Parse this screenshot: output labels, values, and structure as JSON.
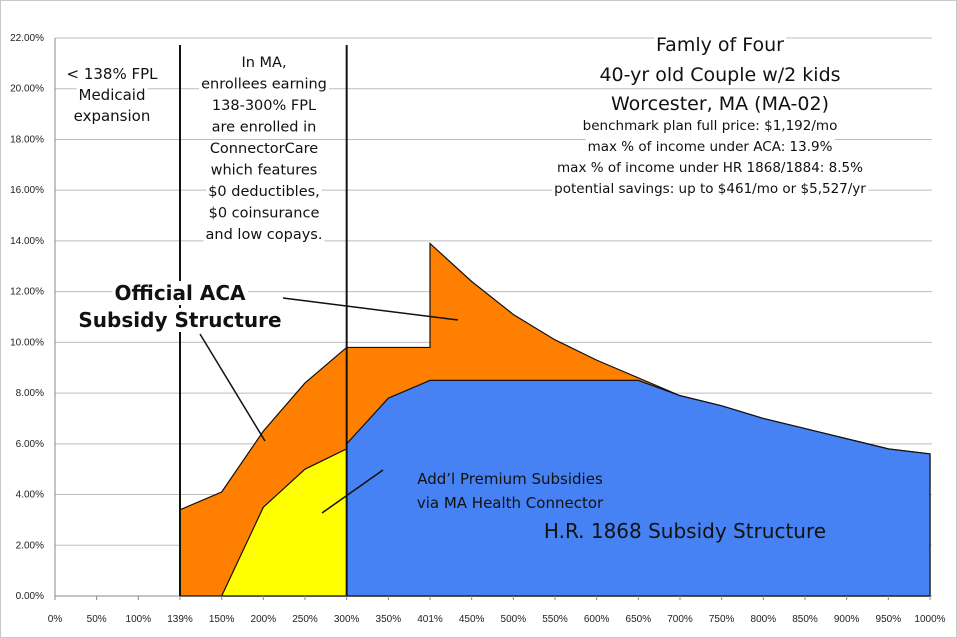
{
  "chart_data": {
    "type": "area",
    "title": "Famly of Four",
    "subtitle_lines": [
      "40-yr old Couple w/2 kids",
      "Worcester, MA (MA-02)"
    ],
    "info_lines": [
      "benchmark plan full price: $1,192/mo",
      "max % of income under ACA: 13.9%",
      "max % of income under HR 1868/1884: 8.5%",
      "potential savings: up to $461/mo or $5,527/yr"
    ],
    "categories": [
      "0%",
      "50%",
      "100%",
      "139%",
      "150%",
      "200%",
      "250%",
      "300%",
      "350%",
      "401%",
      "450%",
      "500%",
      "550%",
      "600%",
      "650%",
      "700%",
      "750%",
      "800%",
      "850%",
      "900%",
      "950%",
      "1000%"
    ],
    "yticks": [
      "0.00%",
      "2.00%",
      "4.00%",
      "6.00%",
      "8.00%",
      "10.00%",
      "12.00%",
      "14.00%",
      "16.00%",
      "18.00%",
      "20.00%",
      "22.00%"
    ],
    "ylim": [
      0,
      22
    ],
    "grid": true,
    "series": [
      {
        "name": "Official ACA Subsidy Structure",
        "color": "#ff7f00",
        "points": [
          [
            "139%",
            3.4
          ],
          [
            "150%",
            4.1
          ],
          [
            "200%",
            6.5
          ],
          [
            "250%",
            8.4
          ],
          [
            "300%",
            9.8
          ],
          [
            "350%",
            9.8
          ],
          [
            "401%",
            9.8
          ],
          [
            "401%",
            13.9
          ],
          [
            "450%",
            12.4
          ],
          [
            "500%",
            11.1
          ],
          [
            "550%",
            10.1
          ],
          [
            "600%",
            9.3
          ],
          [
            "650%",
            8.6
          ],
          [
            "700%",
            7.9
          ],
          [
            "750%",
            7.5
          ],
          [
            "800%",
            7.0
          ],
          [
            "850%",
            6.6
          ],
          [
            "900%",
            6.2
          ],
          [
            "950%",
            5.8
          ],
          [
            "1000%",
            5.6
          ]
        ]
      },
      {
        "name": "H.R. 1868 Subsidy Structure",
        "color": "#4682f4",
        "points": [
          [
            "300%",
            6.0
          ],
          [
            "350%",
            7.8
          ],
          [
            "401%",
            8.5
          ],
          [
            "450%",
            8.5
          ],
          [
            "500%",
            8.5
          ],
          [
            "550%",
            8.5
          ],
          [
            "600%",
            8.5
          ],
          [
            "650%",
            8.5
          ],
          [
            "700%",
            7.9
          ],
          [
            "750%",
            7.5
          ],
          [
            "800%",
            7.0
          ],
          [
            "850%",
            6.6
          ],
          [
            "900%",
            6.2
          ],
          [
            "950%",
            5.8
          ],
          [
            "1000%",
            5.6
          ]
        ]
      },
      {
        "name": "Add'l Premium Subsidies via MA Health Connector",
        "color": "#ffff00",
        "points": [
          [
            "150%",
            0
          ],
          [
            "200%",
            3.5
          ],
          [
            "250%",
            5.0
          ],
          [
            "300%",
            5.8
          ]
        ]
      }
    ],
    "divider_lines_at": [
      "139%",
      "300%"
    ],
    "annotations": {
      "medicaid": [
        "< 138% FPL",
        "Medicaid",
        "expansion"
      ],
      "ma": [
        "In MA,",
        "enrollees earning",
        "138-300% FPL",
        "are enrolled in",
        "ConnectorCare",
        "which features",
        "$0 deductibles,",
        "$0 coinsurance",
        "and low copays."
      ],
      "aca": [
        "Official ACA",
        "Subsidy Structure"
      ],
      "addl": [
        "Add’l Premium Subsidies",
        "via MA Health Connector"
      ],
      "hr": "H.R. 1868 Subsidy Structure"
    }
  }
}
